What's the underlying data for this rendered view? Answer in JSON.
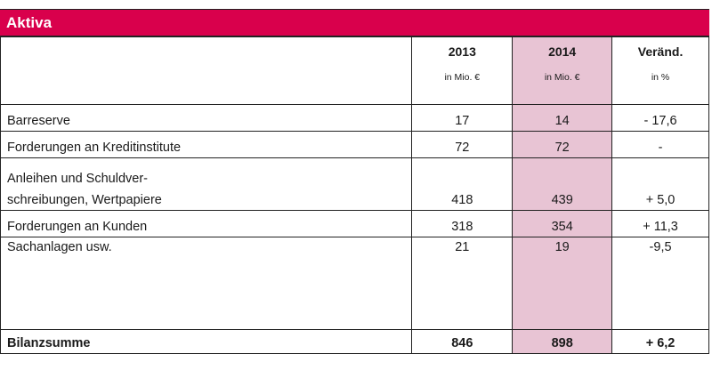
{
  "title": "Aktiva",
  "columns": [
    {
      "year": "2013",
      "unit": "in Mio. €"
    },
    {
      "year": "2014",
      "unit": "in Mio. €"
    },
    {
      "year": "Veränd.",
      "unit": "in %"
    }
  ],
  "rows": [
    {
      "label": "Barreserve",
      "v2013": "17",
      "v2014": "14",
      "change": "- 17,6"
    },
    {
      "label": "Forderungen an Kreditinstitute",
      "v2013": "72",
      "v2014": "72",
      "change": "-"
    },
    {
      "label_line1": "Anleihen und Schuldver-",
      "label_line2": "schreibungen, Wertpapiere",
      "v2013": "418",
      "v2014": "439",
      "change": "+ 5,0"
    },
    {
      "label": "Forderungen an Kunden",
      "v2013": "318",
      "v2014": "354",
      "change": "+ 11,3"
    },
    {
      "label": "Sachanlagen usw.",
      "v2013": "21",
      "v2014": "19",
      "change": "-9,5"
    }
  ],
  "total": {
    "label": "Bilanzsumme",
    "v2013": "846",
    "v2014": "898",
    "change": "+ 6,2"
  },
  "colors": {
    "banner": "#d9004c",
    "highlight": "#e8c4d4"
  }
}
